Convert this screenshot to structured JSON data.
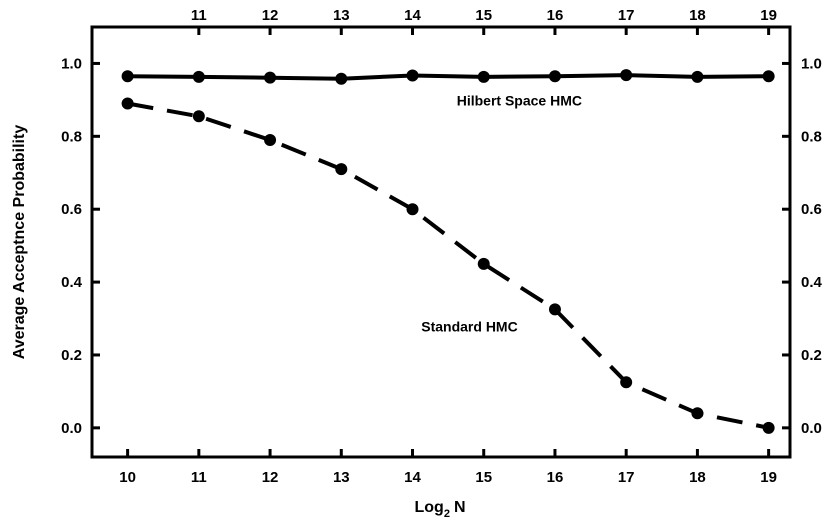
{
  "chart_data": {
    "type": "line",
    "xlabel": "Log",
    "xlabel_sub": "2",
    "xlabel_suffix": "N",
    "ylabel": "Average Acceptnce Probability",
    "xlim": [
      9.5,
      19.3
    ],
    "ylim": [
      -0.08,
      1.1
    ],
    "x_ticks": [
      10,
      11,
      12,
      13,
      14,
      15,
      16,
      17,
      18,
      19
    ],
    "x_tick_labels_bottom": [
      "10",
      "11",
      "12",
      "13",
      "14",
      "15",
      "16",
      "17",
      "18",
      "19"
    ],
    "x_tick_labels_top": [
      "11",
      "12",
      "13",
      "14",
      "15",
      "16",
      "17",
      "18",
      "19"
    ],
    "x_ticks_top": [
      11,
      12,
      13,
      14,
      15,
      16,
      17,
      18,
      19
    ],
    "y_ticks": [
      0.0,
      0.2,
      0.4,
      0.6,
      0.8,
      1.0
    ],
    "y_tick_labels": [
      "0.0",
      "0.2",
      "0.4",
      "0.6",
      "0.8",
      "1.0"
    ],
    "grid": false,
    "legend": "none",
    "x": [
      10,
      11,
      12,
      13,
      14,
      15,
      16,
      17,
      18,
      19
    ],
    "series": [
      {
        "name": "Hilbert Space HMC",
        "style": "solid",
        "color": "#000000",
        "values": [
          0.965,
          0.963,
          0.961,
          0.958,
          0.967,
          0.963,
          0.965,
          0.968,
          0.963,
          0.965
        ],
        "label_at": [
          15.5,
          0.885
        ]
      },
      {
        "name": "Standard HMC",
        "style": "dashed",
        "color": "#000000",
        "values": [
          0.89,
          0.855,
          0.79,
          0.71,
          0.6,
          0.45,
          0.325,
          0.125,
          0.04,
          0.0
        ],
        "label_at": [
          14.8,
          0.265
        ]
      }
    ]
  }
}
